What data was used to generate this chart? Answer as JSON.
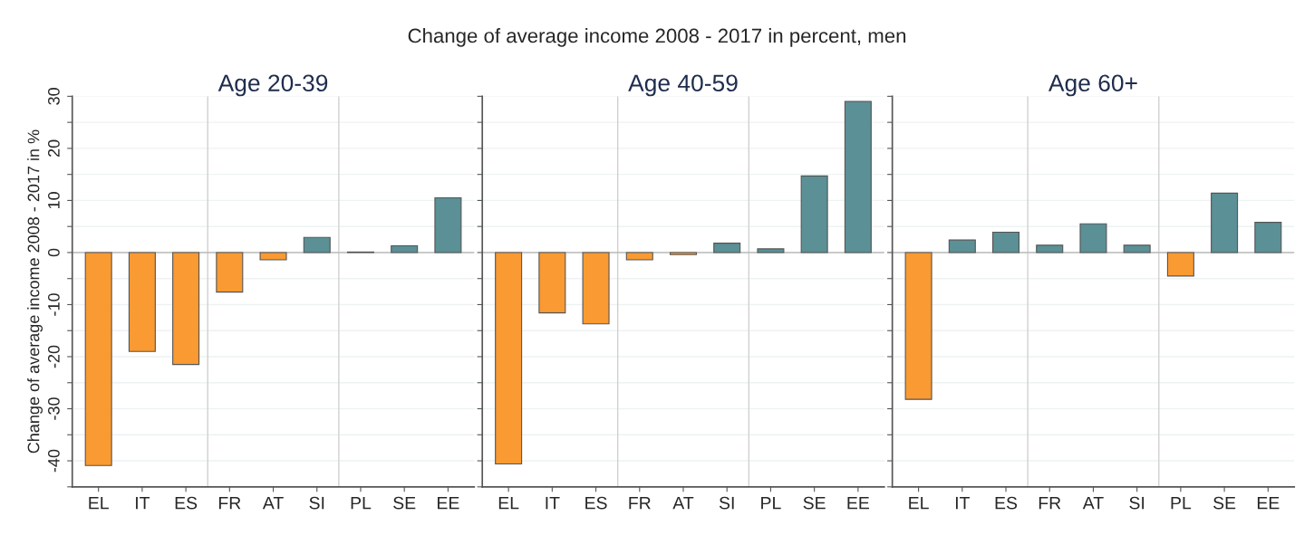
{
  "chart_data": [
    {
      "type": "bar",
      "title": "Age 20-39",
      "ylabel": "Change of average income 2008 - 2017 in %",
      "annotations": [
        "Change of average income 2008 - 2017 in percent, men"
      ],
      "categories": [
        "EL",
        "IT",
        "ES",
        "FR",
        "AT",
        "SI",
        "PL",
        "SE",
        "EE"
      ],
      "values": [
        -40.9,
        -19.0,
        -21.5,
        -7.6,
        -1.4,
        2.9,
        0.1,
        1.3,
        10.5
      ],
      "colors": [
        "#f99a32",
        "#f99a32",
        "#f99a32",
        "#f99a32",
        "#f99a32",
        "#5a9096",
        "#5a9096",
        "#5a9096",
        "#5a9096"
      ],
      "ylim": [
        -45,
        30
      ],
      "yticks": [
        {
          "value": -45,
          "label": null
        },
        -40,
        {
          "value": -35,
          "label": null
        },
        -30,
        {
          "value": -25,
          "label": null
        },
        -20,
        {
          "value": -15,
          "label": null
        },
        -10,
        {
          "value": -5,
          "label": null
        },
        0,
        {
          "value": 5,
          "label": null
        },
        10,
        {
          "value": 15,
          "label": null
        },
        20,
        {
          "value": 25,
          "label": null
        },
        30
      ],
      "grid": "y",
      "ref_lines": [
        {
          "axis": "y",
          "value": 0
        }
      ]
    },
    {
      "type": "bar",
      "title": "Age 40-59",
      "categories": [
        "EL",
        "IT",
        "ES",
        "FR",
        "AT",
        "SI",
        "PL",
        "SE",
        "EE"
      ],
      "values": [
        -40.6,
        -11.6,
        -13.7,
        -1.4,
        -0.4,
        1.8,
        0.7,
        14.7,
        29.0
      ],
      "colors": [
        "#f99a32",
        "#f99a32",
        "#f99a32",
        "#f99a32",
        "#f99a32",
        "#5a9096",
        "#5a9096",
        "#5a9096",
        "#5a9096"
      ],
      "ylim": [
        -45,
        30
      ],
      "yticks": [
        {
          "value": -45,
          "label": null
        },
        -40,
        {
          "value": -35,
          "label": null
        },
        -30,
        {
          "value": -25,
          "label": null
        },
        -20,
        {
          "value": -15,
          "label": null
        },
        -10,
        {
          "value": -5,
          "label": null
        },
        0,
        {
          "value": 5,
          "label": null
        },
        10,
        {
          "value": 15,
          "label": null
        },
        20,
        {
          "value": 25,
          "label": null
        },
        30
      ],
      "tick_labels": "x",
      "grid": "y",
      "ref_lines": [
        {
          "axis": "y",
          "value": 0
        }
      ]
    },
    {
      "type": "bar",
      "title": "Age 60+",
      "categories": [
        "EL",
        "IT",
        "ES",
        "FR",
        "AT",
        "SI",
        "PL",
        "SE",
        "EE"
      ],
      "values": [
        -28.2,
        2.4,
        3.9,
        1.4,
        5.5,
        1.4,
        -4.5,
        11.4,
        5.8
      ],
      "colors": [
        "#f99a32",
        "#5a9096",
        "#5a9096",
        "#5a9096",
        "#5a9096",
        "#5a9096",
        "#f99a32",
        "#5a9096",
        "#5a9096"
      ],
      "ylim": [
        -45,
        30
      ],
      "yticks": [
        {
          "value": -45,
          "label": null
        },
        -40,
        {
          "value": -35,
          "label": null
        },
        -30,
        {
          "value": -25,
          "label": null
        },
        -20,
        {
          "value": -15,
          "label": null
        },
        -10,
        {
          "value": -5,
          "label": null
        },
        0,
        {
          "value": 5,
          "label": null
        },
        10,
        {
          "value": 15,
          "label": null
        },
        20,
        {
          "value": 25,
          "label": null
        },
        30
      ],
      "tick_labels": "x",
      "grid": "y",
      "ref_lines": [
        {
          "axis": "y",
          "value": 0
        }
      ]
    }
  ]
}
